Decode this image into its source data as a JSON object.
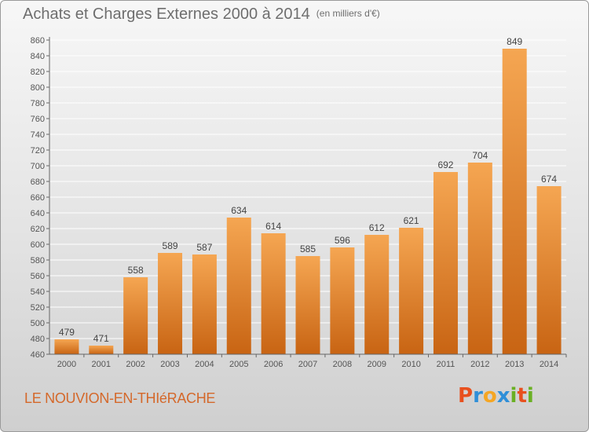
{
  "header": {
    "title": "Achats et Charges Externes 2000 à 2014",
    "unit": "(en milliers d'€)"
  },
  "footer": {
    "commune": "LE NOUVION-EN-THIéRACHE",
    "logo_text": "Proxiti",
    "logo_colors": [
      "#e8501e",
      "#2f8fd8",
      "#f5a623",
      "#2f8fd8",
      "#6ab023",
      "#e8501e",
      "#6ab023"
    ]
  },
  "colors": {
    "bar_light": "#f5a652",
    "bar_dark": "#c86413",
    "axis": "#666666",
    "grid": "#ffffff"
  },
  "chart_data": {
    "type": "bar",
    "title": "Achats et Charges Externes 2000 à 2014",
    "categories": [
      "2000",
      "2001",
      "2002",
      "2003",
      "2004",
      "2005",
      "2006",
      "2007",
      "2008",
      "2009",
      "2010",
      "2011",
      "2012",
      "2013",
      "2014"
    ],
    "values": [
      479,
      471,
      558,
      589,
      587,
      634,
      614,
      585,
      596,
      612,
      621,
      692,
      704,
      849,
      674
    ],
    "ylim": [
      460,
      860
    ],
    "yticks": [
      460,
      480,
      500,
      520,
      540,
      560,
      580,
      600,
      620,
      640,
      660,
      680,
      700,
      720,
      740,
      760,
      780,
      800,
      820,
      840,
      860
    ],
    "grid": true,
    "data_labels": true
  }
}
